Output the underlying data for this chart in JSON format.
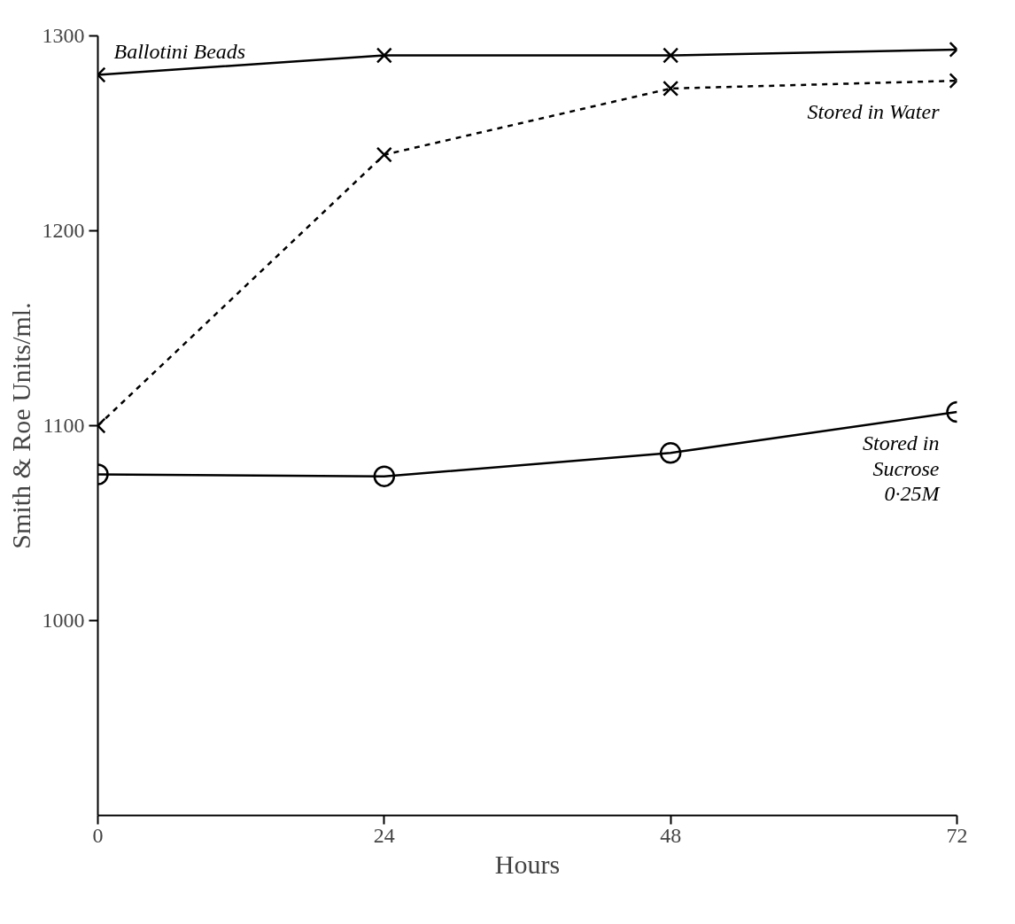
{
  "chart_data": {
    "type": "line",
    "xlabel": "Hours",
    "ylabel": "Smith & Roe Units/ml.",
    "x": [
      0,
      24,
      48,
      72
    ],
    "series": [
      {
        "name": "Ballotini Beads",
        "color": "#000000",
        "values": [
          1280,
          1290,
          1290,
          1293
        ],
        "marker": "cross",
        "line_style": "solid"
      },
      {
        "name": "Stored in Water",
        "color": "#000000",
        "values": [
          1100,
          1239,
          1273,
          1277
        ],
        "marker": "cross",
        "line_style": "dashed"
      },
      {
        "name": "Stored in\nSucrose\n0·25M",
        "color": "#000000",
        "values": [
          1075,
          1074,
          1086,
          1107
        ],
        "marker": "circle",
        "line_style": "solid"
      }
    ],
    "xlim": [
      0,
      72
    ],
    "xticks": [
      0,
      24,
      48,
      72
    ],
    "ylim": [
      900,
      1300
    ],
    "yticks": [
      1000,
      1100,
      1200,
      1300
    ],
    "grid": false,
    "legend": false
  }
}
